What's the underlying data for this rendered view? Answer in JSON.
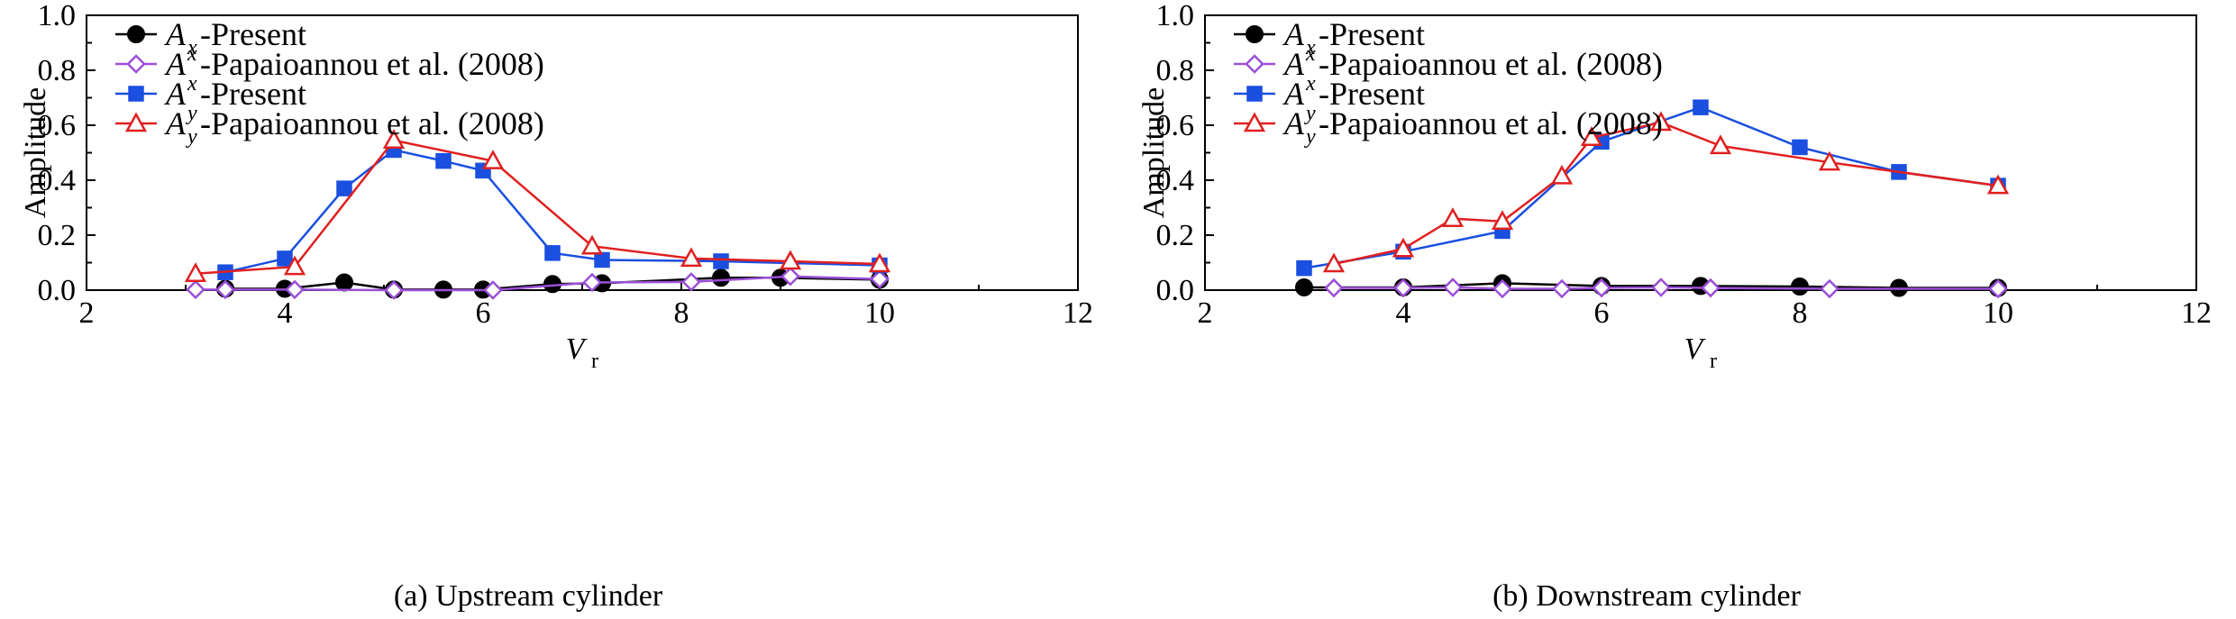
{
  "chart_data": [
    {
      "type": "line",
      "caption": "(a) Upstream cylinder",
      "xlabel_main": "V",
      "xlabel_sub": "r",
      "ylabel": "Amplitude",
      "xlim": [
        2,
        12
      ],
      "ylim": [
        0,
        1.0
      ],
      "xticks": [
        2,
        4,
        6,
        8,
        10,
        12
      ],
      "yticks": [
        0.0,
        0.2,
        0.4,
        0.6,
        0.8,
        1.0
      ],
      "xtick_labels": [
        "2",
        "4",
        "6",
        "8",
        "10",
        "12"
      ],
      "ytick_labels": [
        "0.0",
        "0.2",
        "0.4",
        "0.6",
        "0.8",
        "1.0"
      ],
      "legend_position": "top-left",
      "series": [
        {
          "legend_main": "A",
          "legend_sup": "",
          "legend_sub": "x",
          "legend_rest": "-Present",
          "color": "#000000",
          "marker": "circle-filled",
          "x": [
            3.4,
            4.0,
            4.6,
            5.1,
            5.6,
            6.0,
            6.7,
            7.2,
            8.4,
            9.0,
            10.0
          ],
          "y": [
            0.005,
            0.005,
            0.028,
            0.002,
            0.002,
            0.002,
            0.022,
            0.025,
            0.045,
            0.045,
            0.038
          ]
        },
        {
          "legend_main": "A",
          "legend_sup": "x",
          "legend_sub": "",
          "legend_rest": "-Papaioannou et al. (2008)",
          "color": "#9b4fd6",
          "marker": "diamond-open",
          "x": [
            3.1,
            3.4,
            4.1,
            5.1,
            6.1,
            7.1,
            8.1,
            9.1,
            10.0
          ],
          "y": [
            0.002,
            0.002,
            0.002,
            0.0,
            0.0,
            0.028,
            0.03,
            0.05,
            0.04
          ]
        },
        {
          "legend_main": "A",
          "legend_sup": "x",
          "legend_sub": "",
          "legend_rest": "-Present",
          "color": "#1a4fe0",
          "marker": "square-filled",
          "x": [
            3.4,
            4.0,
            4.6,
            5.1,
            5.6,
            6.0,
            6.7,
            7.2,
            8.4,
            10.0
          ],
          "y": [
            0.065,
            0.115,
            0.37,
            0.51,
            0.47,
            0.435,
            0.135,
            0.11,
            0.105,
            0.09
          ]
        },
        {
          "legend_main": "A",
          "legend_sup": "y",
          "legend_sub": "y",
          "legend_rest": "-Papaioannou et al. (2008)",
          "color": "#e02020",
          "marker": "triangle-open",
          "x": [
            3.1,
            4.1,
            5.1,
            6.1,
            7.1,
            8.1,
            9.1,
            10.0
          ],
          "y": [
            0.06,
            0.085,
            0.545,
            0.47,
            0.16,
            0.115,
            0.105,
            0.095
          ]
        }
      ]
    },
    {
      "type": "line",
      "caption": "(b) Downstream cylinder",
      "xlabel_main": "V",
      "xlabel_sub": "r",
      "ylabel": "Amplitude",
      "xlim": [
        2,
        12
      ],
      "ylim": [
        0,
        1.0
      ],
      "xticks": [
        2,
        4,
        6,
        8,
        10,
        12
      ],
      "yticks": [
        0.0,
        0.2,
        0.4,
        0.6,
        0.8,
        1.0
      ],
      "xtick_labels": [
        "2",
        "4",
        "6",
        "8",
        "10",
        "12"
      ],
      "ytick_labels": [
        "0.0",
        "0.2",
        "0.4",
        "0.6",
        "0.8",
        "1.0"
      ],
      "legend_position": "top-left",
      "series": [
        {
          "legend_main": "A",
          "legend_sup": "",
          "legend_sub": "x",
          "legend_rest": "-Present",
          "color": "#000000",
          "marker": "circle-filled",
          "x": [
            3.0,
            4.0,
            5.0,
            6.0,
            7.0,
            8.0,
            9.0,
            10.0
          ],
          "y": [
            0.01,
            0.01,
            0.025,
            0.015,
            0.015,
            0.013,
            0.008,
            0.008
          ]
        },
        {
          "legend_main": "A",
          "legend_sup": "x",
          "legend_sub": "",
          "legend_rest": "-Papaioannou et al. (2008)",
          "color": "#9b4fd6",
          "marker": "diamond-open",
          "x": [
            3.3,
            4.0,
            4.5,
            5.0,
            5.6,
            6.0,
            6.6,
            7.1,
            8.3,
            10.0
          ],
          "y": [
            0.008,
            0.008,
            0.01,
            0.005,
            0.005,
            0.008,
            0.01,
            0.008,
            0.005,
            0.005
          ]
        },
        {
          "legend_main": "A",
          "legend_sup": "x",
          "legend_sub": "",
          "legend_rest": "-Present",
          "color": "#1a4fe0",
          "marker": "square-filled",
          "x": [
            3.0,
            4.0,
            5.0,
            6.0,
            7.0,
            8.0,
            9.0,
            10.0
          ],
          "y": [
            0.08,
            0.14,
            0.215,
            0.54,
            0.665,
            0.52,
            0.43,
            0.38
          ]
        },
        {
          "legend_main": "A",
          "legend_sup": "y",
          "legend_sub": "y",
          "legend_rest": "-Papaioannou et al. (2008)",
          "color": "#e02020",
          "marker": "triangle-open",
          "x": [
            3.3,
            4.0,
            4.5,
            5.0,
            5.6,
            5.9,
            6.6,
            7.2,
            8.3,
            10.0
          ],
          "y": [
            0.095,
            0.15,
            0.26,
            0.25,
            0.415,
            0.555,
            0.61,
            0.525,
            0.465,
            0.38
          ]
        }
      ]
    }
  ]
}
